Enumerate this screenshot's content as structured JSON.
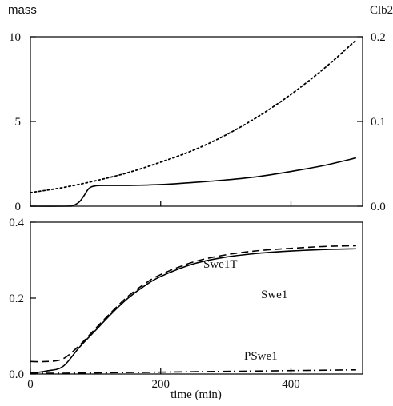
{
  "chart_data": [
    {
      "type": "line",
      "panel": "top",
      "ylabel_left": "mass",
      "ylabel_right": "Clb2",
      "xlim": [
        0,
        510
      ],
      "ylim_left": [
        0,
        10
      ],
      "ylim_right": [
        0,
        0.2
      ],
      "yticks_left": [
        "0",
        "5",
        "10"
      ],
      "yticks_right": [
        "0.0",
        "0.1",
        "0.2"
      ],
      "series": [
        {
          "axis": "left",
          "style": "dotted",
          "x": [
            0,
            50,
            100,
            150,
            200,
            250,
            300,
            350,
            400,
            450,
            500
          ],
          "y": [
            0.8,
            1.1,
            1.5,
            1.98,
            2.6,
            3.3,
            4.2,
            5.3,
            6.6,
            8.1,
            9.8
          ]
        },
        {
          "axis": "right",
          "style": "solid",
          "x": [
            0,
            55,
            65,
            75,
            82,
            90,
            100,
            120,
            150,
            200,
            250,
            300,
            350,
            400,
            450,
            500
          ],
          "y": [
            0.0,
            0.0,
            0.0006,
            0.005,
            0.012,
            0.021,
            0.024,
            0.0245,
            0.0245,
            0.0255,
            0.028,
            0.031,
            0.035,
            0.041,
            0.048,
            0.057
          ]
        }
      ]
    },
    {
      "type": "line",
      "panel": "bottom",
      "xlabel": "time (min)",
      "xlim": [
        0,
        510
      ],
      "ylim": [
        0,
        0.4
      ],
      "xticks": [
        "0",
        "200",
        "400"
      ],
      "yticks": [
        "0.0",
        "0.2",
        "0.4"
      ],
      "series": [
        {
          "name": "Swe1",
          "style": "solid",
          "x": [
            0,
            25,
            50,
            75,
            100,
            125,
            150,
            175,
            200,
            250,
            300,
            350,
            400,
            450,
            500
          ],
          "y": [
            0.002,
            0.008,
            0.02,
            0.07,
            0.115,
            0.16,
            0.2,
            0.232,
            0.257,
            0.29,
            0.308,
            0.318,
            0.324,
            0.328,
            0.33
          ]
        },
        {
          "name": "Swe1T",
          "style": "dashed",
          "x": [
            0,
            25,
            50,
            75,
            100,
            125,
            150,
            175,
            200,
            250,
            300,
            350,
            400,
            450,
            500
          ],
          "y": [
            0.033,
            0.033,
            0.04,
            0.075,
            0.12,
            0.164,
            0.205,
            0.237,
            0.262,
            0.295,
            0.314,
            0.325,
            0.331,
            0.336,
            0.338
          ]
        },
        {
          "name": "PSwe1",
          "style": "dashdot",
          "x": [
            0,
            50,
            100,
            200,
            300,
            400,
            500
          ],
          "y": [
            0.002,
            0.002,
            0.003,
            0.005,
            0.007,
            0.009,
            0.011
          ]
        }
      ]
    }
  ]
}
